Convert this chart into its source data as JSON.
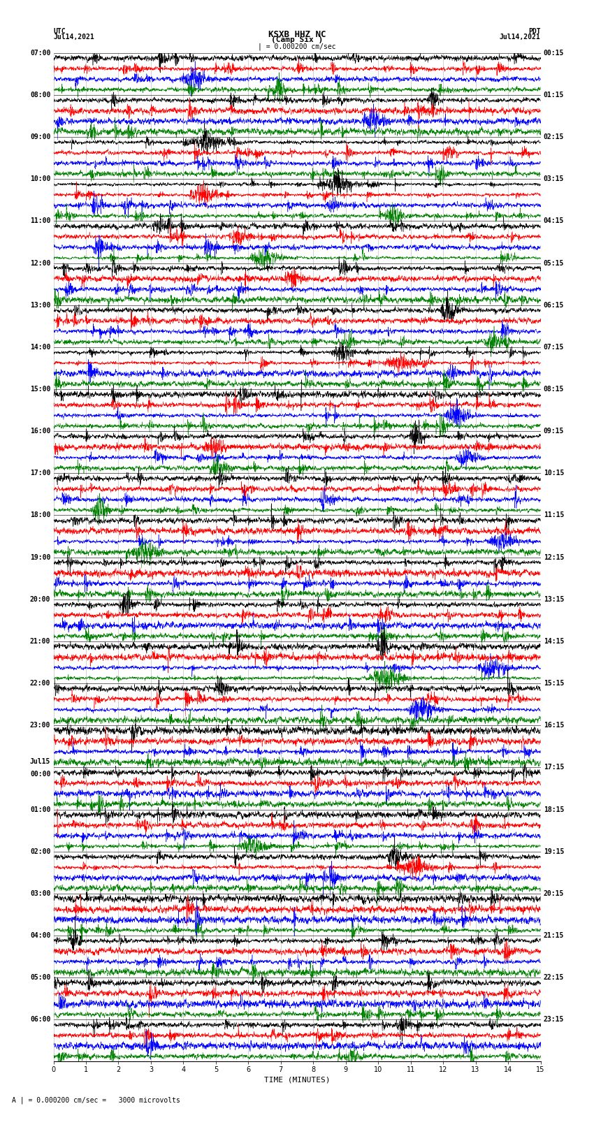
{
  "title_line1": "KSXB HHZ NC",
  "title_line2": "(Camp Six )",
  "left_header": "UTC",
  "left_date": "Jul14,2021",
  "right_header": "PDT",
  "right_date": "Jul14,2021",
  "scale_text": "| = 0.000200 cm/sec",
  "bottom_label": "TIME (MINUTES)",
  "bottom_note": "A | = 0.000200 cm/sec =   3000 microvolts",
  "utc_labels": [
    "07:00",
    "08:00",
    "09:00",
    "10:00",
    "11:00",
    "12:00",
    "13:00",
    "14:00",
    "15:00",
    "16:00",
    "17:00",
    "18:00",
    "19:00",
    "20:00",
    "21:00",
    "22:00",
    "23:00",
    "Jul15\n00:00",
    "01:00",
    "02:00",
    "03:00",
    "04:00",
    "05:00",
    "06:00"
  ],
  "pdt_labels": [
    "00:15",
    "01:15",
    "02:15",
    "03:15",
    "04:15",
    "05:15",
    "06:15",
    "07:15",
    "08:15",
    "09:15",
    "10:15",
    "11:15",
    "12:15",
    "13:15",
    "14:15",
    "15:15",
    "16:15",
    "17:15",
    "18:15",
    "19:15",
    "20:15",
    "21:15",
    "22:15",
    "23:15"
  ],
  "x_ticks": [
    0,
    1,
    2,
    3,
    4,
    5,
    6,
    7,
    8,
    9,
    10,
    11,
    12,
    13,
    14,
    15
  ],
  "xlim": [
    0,
    15
  ],
  "trace_colors": [
    "black",
    "red",
    "blue",
    "green"
  ],
  "n_rows": 24,
  "n_traces_per_row": 4,
  "fig_width": 8.5,
  "fig_height": 16.13,
  "background_color": "white",
  "font_size_labels": 7,
  "font_size_title": 8,
  "font_size_axis": 7,
  "seed": 42
}
